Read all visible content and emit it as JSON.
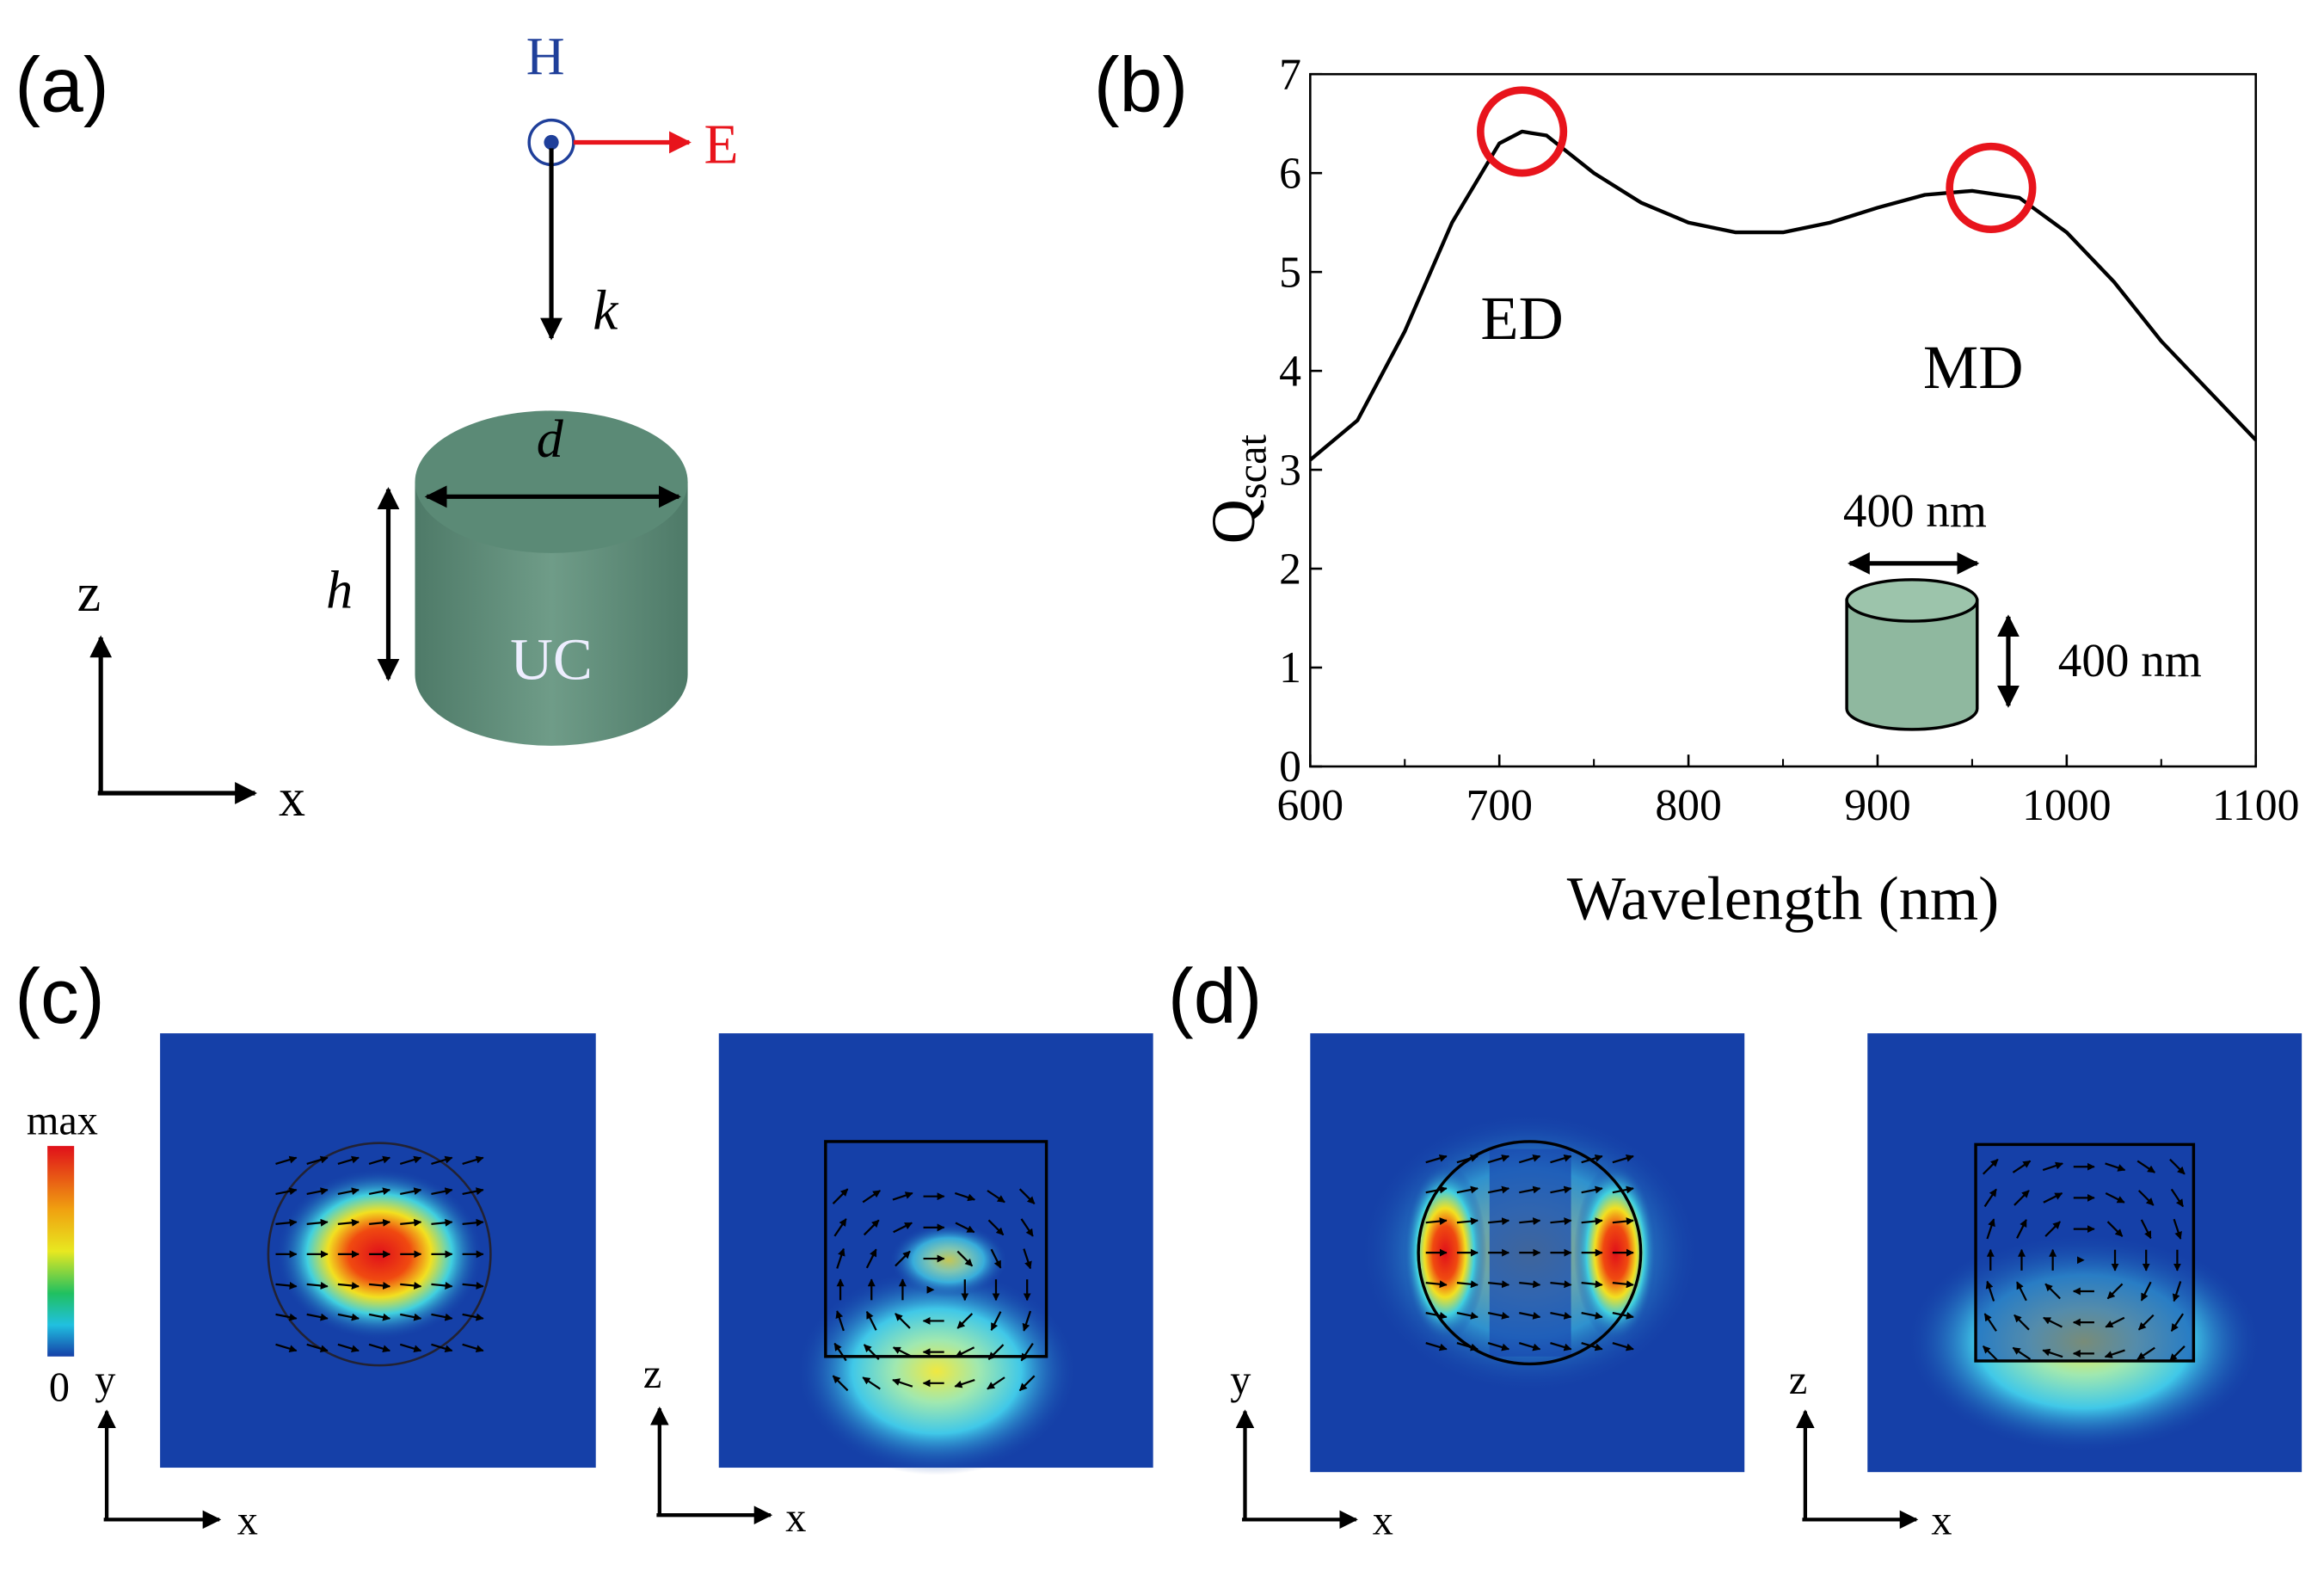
{
  "panels": {
    "a": {
      "label": "(a)",
      "H": "H",
      "E": "E",
      "k": "k",
      "d": "d",
      "h": "h",
      "material": "UC",
      "axis_z": "z",
      "axis_x": "x"
    },
    "c": {
      "label": "(c)",
      "colorbar_max": "max",
      "colorbar_min": "0",
      "map1_axes": [
        "y",
        "x"
      ],
      "map2_axes": [
        "z",
        "x"
      ]
    },
    "d": {
      "label": "(d)",
      "map1_axes": [
        "y",
        "x"
      ],
      "map2_axes": [
        "z",
        "x"
      ]
    }
  },
  "chart_data": {
    "type": "line",
    "panel_label": "(b)",
    "x_label": "Wavelength (nm)",
    "y_label": "Q",
    "y_label_sub": "scat",
    "x": [
      600,
      625,
      650,
      675,
      700,
      712,
      725,
      750,
      775,
      800,
      825,
      850,
      875,
      900,
      925,
      950,
      975,
      1000,
      1025,
      1050,
      1075,
      1100
    ],
    "series": [
      {
        "name": "Qscat",
        "color": "#000000",
        "values": [
          3.1,
          3.5,
          4.4,
          5.5,
          6.3,
          6.42,
          6.38,
          6.0,
          5.7,
          5.5,
          5.4,
          5.4,
          5.5,
          5.65,
          5.78,
          5.82,
          5.75,
          5.4,
          4.9,
          4.3,
          3.8,
          3.3
        ]
      }
    ],
    "xlim": [
      600,
      1100
    ],
    "ylim": [
      0,
      7
    ],
    "xticks": [
      600,
      700,
      800,
      900,
      1000,
      1100
    ],
    "yticks": [
      0,
      1,
      2,
      3,
      4,
      5,
      6,
      7
    ],
    "minor_xticks": [
      650,
      750,
      850,
      950,
      1050
    ],
    "peaks": [
      {
        "label": "ED",
        "x": 712,
        "y": 6.42,
        "color": "#e8141c"
      },
      {
        "label": "MD",
        "x": 960,
        "y": 5.85,
        "color": "#e8141c"
      }
    ],
    "inset": {
      "width_label": "400 nm",
      "height_label": "400 nm"
    }
  }
}
